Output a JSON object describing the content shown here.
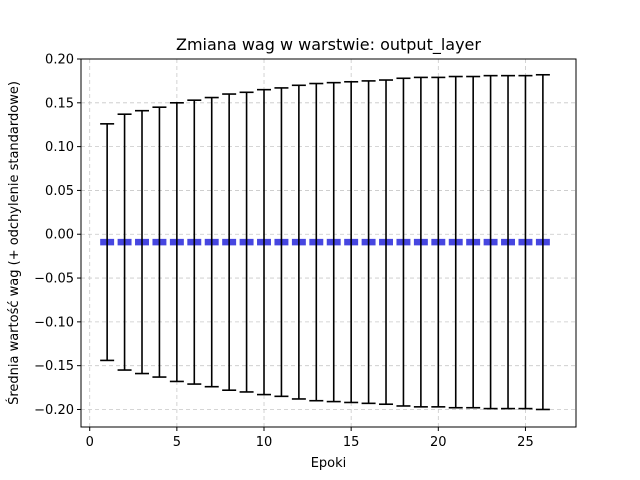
{
  "chart_data": {
    "type": "bar",
    "title": "Zmiana wag w warstwie: output_layer",
    "xlabel": "Epoki",
    "ylabel": "Średnia wartość wag (+ odchylenie standardowe)",
    "xlim": [
      -0.5,
      27.9
    ],
    "ylim": [
      -0.22,
      0.2
    ],
    "x_ticks": [
      0,
      5,
      10,
      15,
      20,
      25
    ],
    "y_ticks": [
      -0.2,
      -0.15,
      -0.1,
      -0.05,
      0.0,
      0.05,
      0.1,
      0.15,
      0.2
    ],
    "y_tick_labels": [
      "−0.20",
      "−0.15",
      "−0.10",
      "−0.05",
      "0.00",
      "0.05",
      "0.10",
      "0.15",
      "0.20"
    ],
    "grid": true,
    "bar_color": "#4646e0",
    "errorbar_color": "#000000",
    "x": [
      1,
      2,
      3,
      4,
      5,
      6,
      7,
      8,
      9,
      10,
      11,
      12,
      13,
      14,
      15,
      16,
      17,
      18,
      19,
      20,
      21,
      22,
      23,
      24,
      25,
      26
    ],
    "mean": [
      -0.009,
      -0.009,
      -0.009,
      -0.009,
      -0.009,
      -0.009,
      -0.009,
      -0.009,
      -0.009,
      -0.009,
      -0.009,
      -0.009,
      -0.009,
      -0.009,
      -0.009,
      -0.009,
      -0.009,
      -0.009,
      -0.009,
      -0.009,
      -0.009,
      -0.009,
      -0.009,
      -0.009,
      -0.009,
      -0.009
    ],
    "std": [
      0.135,
      0.146,
      0.15,
      0.154,
      0.159,
      0.162,
      0.165,
      0.169,
      0.171,
      0.174,
      0.176,
      0.179,
      0.181,
      0.182,
      0.183,
      0.184,
      0.185,
      0.187,
      0.188,
      0.188,
      0.189,
      0.189,
      0.19,
      0.19,
      0.19,
      0.191
    ]
  }
}
